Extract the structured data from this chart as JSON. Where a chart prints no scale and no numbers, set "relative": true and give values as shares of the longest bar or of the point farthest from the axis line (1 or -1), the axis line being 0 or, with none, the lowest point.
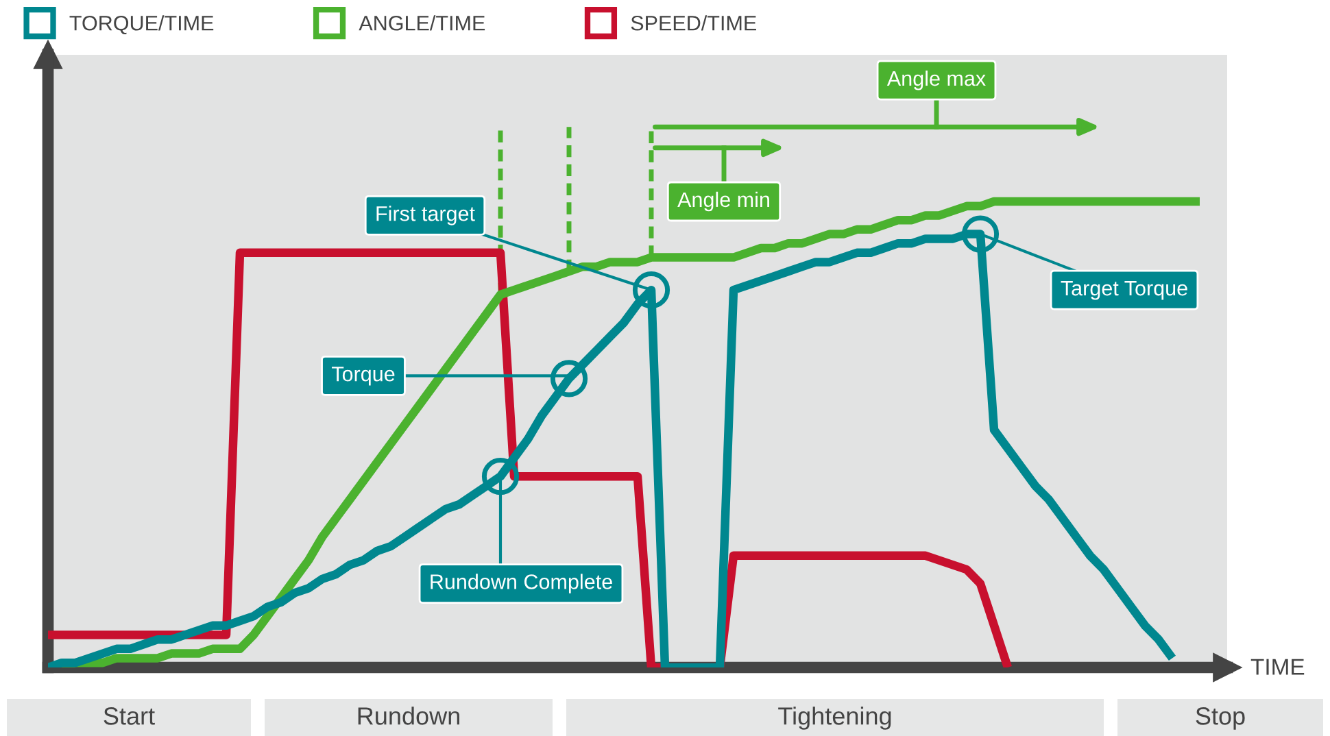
{
  "chart_data": {
    "type": "line",
    "relative": true,
    "tick_labels": false,
    "legend": "top left",
    "marker": "none",
    "line_style": "solid",
    "xlabel": "TIME",
    "categories": [
      null,
      null,
      null,
      null,
      null,
      null,
      null,
      null,
      null,
      null,
      null,
      null,
      null,
      null,
      null,
      null,
      null,
      null,
      null,
      null,
      null,
      null,
      null,
      null,
      null,
      null,
      null,
      null,
      null,
      null,
      null,
      null,
      null,
      null,
      null,
      null,
      null,
      null,
      null,
      null,
      null,
      null,
      null,
      null,
      null,
      null,
      null,
      null,
      null,
      null,
      null,
      null,
      null,
      null,
      null,
      null,
      null,
      null,
      null,
      null,
      null,
      null,
      null,
      null,
      null,
      null,
      null,
      null,
      null,
      null,
      null,
      null,
      null,
      null,
      null,
      null,
      null,
      null,
      null,
      null,
      null,
      null,
      null,
      null,
      null,
      null
    ],
    "series": [
      {
        "name": "TORQUE/TIME",
        "color": "#00878f",
        "values": [
          0,
          0.01,
          0.01,
          0.02,
          0.03,
          0.04,
          0.04,
          0.05,
          0.06,
          0.06,
          0.07,
          0.08,
          0.09,
          0.09,
          0.1,
          0.11,
          0.13,
          0.14,
          0.16,
          0.17,
          0.19,
          0.2,
          0.22,
          0.23,
          0.25,
          0.26,
          0.28,
          0.3,
          0.32,
          0.34,
          0.35,
          0.37,
          0.39,
          0.41,
          0.45,
          0.49,
          0.54,
          0.58,
          0.62,
          0.65,
          0.68,
          0.71,
          0.74,
          0.78,
          0.81,
          0,
          0,
          0,
          0,
          0,
          0.81,
          0.82,
          0.83,
          0.84,
          0.85,
          0.86,
          0.87,
          0.87,
          0.88,
          0.89,
          0.89,
          0.9,
          0.91,
          0.91,
          0.92,
          0.92,
          0.92,
          0.93,
          0.93,
          0.51,
          0.47,
          0.43,
          0.39,
          0.36,
          0.32,
          0.28,
          0.24,
          0.21,
          0.17,
          0.13,
          0.09,
          0.06,
          0.02,
          null,
          null,
          null
        ]
      },
      {
        "name": "ANGLE/TIME",
        "color": "#4bb22f",
        "values": [
          0,
          0,
          0.01,
          0.01,
          0.01,
          0.02,
          0.02,
          0.02,
          0.02,
          0.03,
          0.03,
          0.03,
          0.04,
          0.04,
          0.04,
          0.07,
          0.11,
          0.15,
          0.19,
          0.23,
          0.28,
          0.32,
          0.36,
          0.4,
          0.44,
          0.48,
          0.52,
          0.56,
          0.6,
          0.64,
          0.68,
          0.72,
          0.76,
          0.8,
          0.81,
          0.82,
          0.83,
          0.84,
          0.85,
          0.86,
          0.86,
          0.87,
          0.87,
          0.87,
          0.88,
          0.88,
          0.88,
          0.88,
          0.88,
          0.88,
          0.88,
          0.89,
          0.9,
          0.9,
          0.91,
          0.91,
          0.92,
          0.93,
          0.93,
          0.94,
          0.94,
          0.95,
          0.96,
          0.96,
          0.97,
          0.97,
          0.98,
          0.99,
          0.99,
          1.0,
          1.0,
          1.0,
          1.0,
          1.0,
          1.0,
          1.0,
          1.0,
          1.0,
          1.0,
          1.0,
          1.0,
          1.0,
          1.0,
          1.0,
          1.0,
          null
        ]
      },
      {
        "name": "SPEED/TIME",
        "color": "#c8102e",
        "values": [
          0.07,
          0.07,
          0.07,
          0.07,
          0.07,
          0.07,
          0.07,
          0.07,
          0.07,
          0.07,
          0.07,
          0.07,
          0.07,
          0.07,
          0.89,
          0.89,
          0.89,
          0.89,
          0.89,
          0.89,
          0.89,
          0.89,
          0.89,
          0.89,
          0.89,
          0.89,
          0.89,
          0.89,
          0.89,
          0.89,
          0.89,
          0.89,
          0.89,
          0.89,
          0.41,
          0.41,
          0.41,
          0.41,
          0.41,
          0.41,
          0.41,
          0.41,
          0.41,
          0.41,
          0,
          0,
          0,
          0,
          0,
          0,
          0.24,
          0.24,
          0.24,
          0.24,
          0.24,
          0.24,
          0.24,
          0.24,
          0.24,
          0.24,
          0.24,
          0.24,
          0.24,
          0.24,
          0.24,
          0.23,
          0.22,
          0.21,
          0.18,
          0.09,
          0,
          null,
          null,
          null,
          null,
          null,
          null,
          null,
          null,
          null,
          null,
          null,
          null,
          null,
          null,
          null
        ]
      }
    ],
    "annotations": [
      "First target",
      "Torque",
      "Rundown Complete",
      "Target Torque",
      "Angle min",
      "Angle max",
      "Start",
      "Rundown",
      "Tightening",
      "Stop"
    ]
  }
}
